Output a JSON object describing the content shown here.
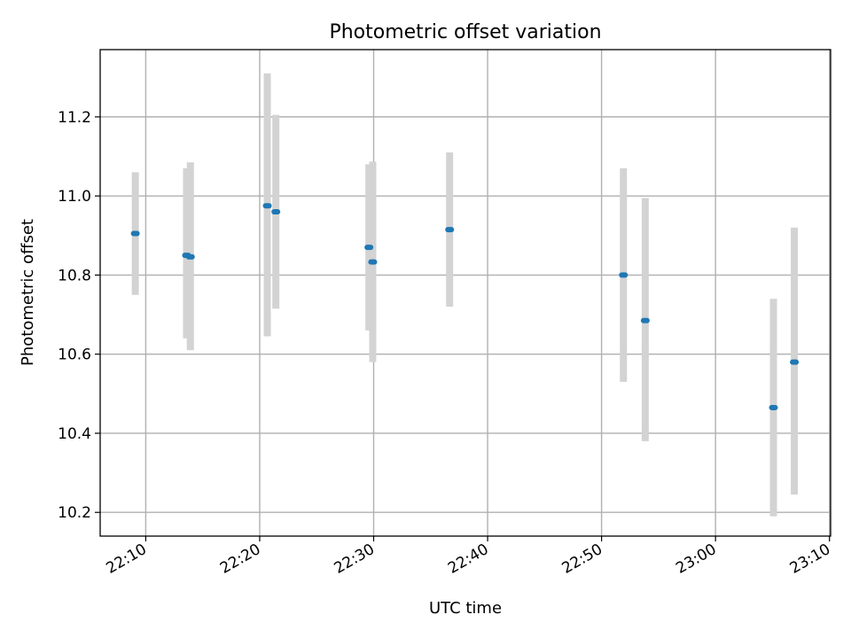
{
  "chart_data": {
    "type": "scatter",
    "title": "Photometric offset variation",
    "xlabel": "UTC time",
    "ylabel": "Photometric offset",
    "x_tick_labels": [
      "22:10",
      "22:20",
      "22:30",
      "22:40",
      "22:50",
      "23:00",
      "23:10"
    ],
    "x_tick_minutes": [
      10,
      20,
      30,
      40,
      50,
      60,
      70
    ],
    "y_ticks": [
      10.2,
      10.4,
      10.6,
      10.8,
      11.0,
      11.2
    ],
    "y_tick_labels": [
      "10.2",
      "10.4",
      "10.6",
      "10.8",
      "11.0",
      "11.2"
    ],
    "xlim_minutes": [
      6,
      70.1
    ],
    "ylim": [
      10.14,
      11.37
    ],
    "grid": true,
    "points": [
      {
        "time": "22:09:05",
        "y": 10.905,
        "lower": 10.75,
        "upper": 11.06
      },
      {
        "time": "22:13:35",
        "y": 10.85,
        "lower": 10.64,
        "upper": 11.07
      },
      {
        "time": "22:13:55",
        "y": 10.846,
        "lower": 10.61,
        "upper": 11.085
      },
      {
        "time": "22:20:40",
        "y": 10.975,
        "lower": 10.645,
        "upper": 11.31
      },
      {
        "time": "22:21:25",
        "y": 10.96,
        "lower": 10.715,
        "upper": 11.205
      },
      {
        "time": "22:29:35",
        "y": 10.87,
        "lower": 10.66,
        "upper": 11.08
      },
      {
        "time": "22:29:55",
        "y": 10.833,
        "lower": 10.58,
        "upper": 11.087
      },
      {
        "time": "22:36:40",
        "y": 10.915,
        "lower": 10.72,
        "upper": 11.11
      },
      {
        "time": "22:51:55",
        "y": 10.8,
        "lower": 10.53,
        "upper": 11.07
      },
      {
        "time": "22:53:50",
        "y": 10.685,
        "lower": 10.38,
        "upper": 10.995
      },
      {
        "time": "23:05:05",
        "y": 10.465,
        "lower": 10.19,
        "upper": 10.74
      },
      {
        "time": "23:06:55",
        "y": 10.58,
        "lower": 10.245,
        "upper": 10.92
      }
    ],
    "colors": {
      "point": "#1f77b4",
      "error_band": "#d3d3d3",
      "grid": "#b0b0b0",
      "axes": "#000000"
    }
  }
}
